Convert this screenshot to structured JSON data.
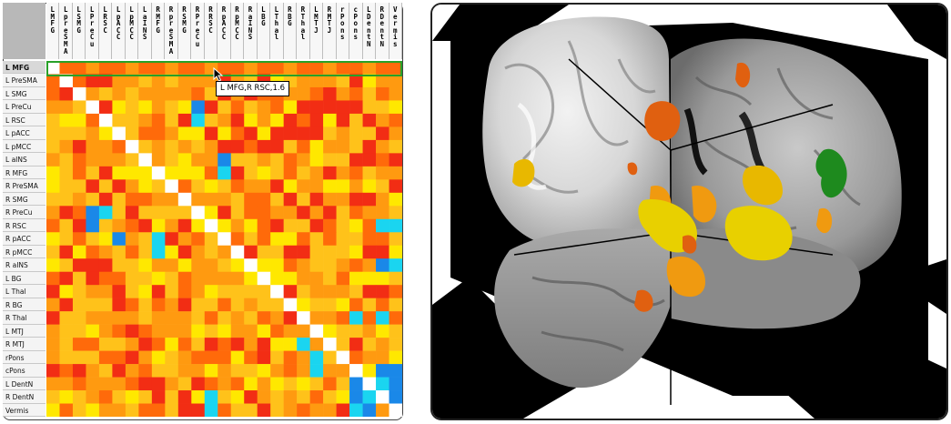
{
  "matrix": {
    "regions": [
      "L MFG",
      "L PreSMA",
      "L SMG",
      "L PreCu",
      "L RSC",
      "L pACC",
      "L pMCC",
      "L aINS",
      "R MFG",
      "R PreSMA",
      "R SMG",
      "R PreCu",
      "R RSC",
      "R pACC",
      "R pMCC",
      "R aINS",
      "L BG",
      "L Thal",
      "R BG",
      "R Thal",
      "L MTJ",
      "R MTJ",
      "rPons",
      "cPons",
      "L DentN",
      "R DentN",
      "Vermis"
    ],
    "column_labels": [
      "L\nM\nF\nG",
      "L\np\nr\ne\nS\nM\nA",
      "L\nS\nM\nG",
      "L\nP\nr\ne\nC\nu",
      "L\nR\nS\nC",
      "L\np\nA\nC\nC",
      "L\np\nM\nC\nC",
      "L\na\nI\nN\nS",
      "R\nM\nF\nG",
      "R\np\nr\ne\nS\nM\nA",
      "R\nS\nM\nG",
      "R\nP\nr\ne\nC\nu",
      "R\nR\nS\nC",
      "R\np\nA\nC\nC",
      "R\np\nM\nC\nC",
      "R\na\nI\nN\nS",
      "L\nB\nG",
      "L\nT\nh\na\nl",
      "R\nB\nG",
      "R\nT\nh\na\nl",
      "L\nM\nT\nJ",
      "R\nM\nT\nJ",
      "r\nP\no\nn\ns",
      "c\nP\no\nn\ns",
      "L\nD\ne\nn\nt\nN",
      "R\nD\ne\nn\nt\nN",
      "V\ne\nr\nm\ni\ns"
    ],
    "selected_row": "L MFG",
    "tooltip": "L MFG,R RSC,1.6",
    "colors": {
      "yellow": "#ffe800",
      "light_orange": "#ffc21a",
      "orange": "#ff9a10",
      "dark_orange": "#ff6a0a",
      "red": "#f22d14",
      "cyan": "#1ad5f0",
      "blue": "#1a88e8",
      "diagonal": "#ffffff",
      "selection": "#28a028"
    }
  },
  "brain_view": {
    "view": "3D orthogonal slices with activation clusters",
    "cluster_colors": {
      "yellow": "#e8d000",
      "orange": "#f09a10",
      "dark_orange": "#e06010",
      "green": "#1e8a1e"
    }
  }
}
